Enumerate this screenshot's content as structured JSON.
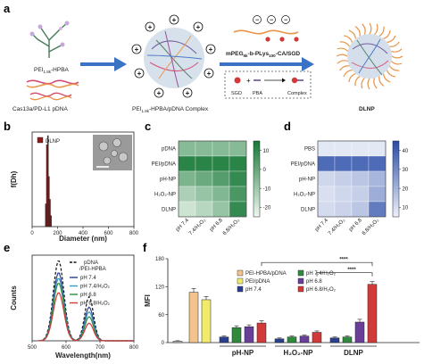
{
  "panel_a": {
    "letter": "a",
    "pei_label": "PEI",
    "pei_sub": "1.8k",
    "pei_suffix": "-HPBA",
    "pdna_label": "Cas13a/PD-L1 pDNA",
    "complex_label_pre": "PEI",
    "complex_sub": "1.8k",
    "complex_label_post": "-HPBA/pDNA Complex",
    "polymer_pre": "mPEG",
    "polymer_sub1": "5k",
    "polymer_mid": "-b-PLys",
    "polymer_sub2": "100",
    "polymer_post": "-CA/SGD",
    "sgd_label": "SGD",
    "pba_label": "PBA",
    "complex_word": "Complex",
    "dlnp_label": "DLNP",
    "charge_plus": "+",
    "charge_minus": "−",
    "reaction_plus": "+"
  },
  "colors": {
    "arrow": "#3a72c4",
    "green_dark": "#1a7a3a",
    "blue_dark": "#2b4ea8",
    "bar_outline": "#222222"
  },
  "panel_b": {
    "letter": "b",
    "legend": "DLNP",
    "scale_bar_note": "",
    "chart_data": {
      "type": "bar",
      "xlabel": "Diameter (nm)",
      "ylabel": "f(Dh)",
      "x_ticks": [
        0,
        200,
        400,
        600,
        800
      ],
      "xlim": [
        0,
        800
      ],
      "x": [
        108,
        116,
        124,
        132,
        140,
        148
      ],
      "values": [
        0.25,
        0.9,
        1.0,
        0.55,
        0.3,
        0.12
      ]
    }
  },
  "panel_c": {
    "letter": "c",
    "chart_data": {
      "type": "heatmap",
      "rows": [
        "pDNA",
        "PEI/pDNA",
        "pH-NP",
        "H₂O₂-NP",
        "DLNP"
      ],
      "cols": [
        "pH 7.4",
        "7.4/H₂O₂",
        "pH 6.8",
        "6.8/H₂O₂"
      ],
      "colorbar_ticks": [
        10,
        0,
        -10,
        -20
      ],
      "colorbar_range": [
        -25,
        15
      ],
      "values": [
        [
          -5,
          -5,
          -5,
          -5
        ],
        [
          12,
          12,
          12,
          12
        ],
        [
          -3,
          0,
          4,
          10
        ],
        [
          -12,
          -8,
          -4,
          6
        ],
        [
          -18,
          -14,
          -8,
          10
        ]
      ]
    }
  },
  "panel_d": {
    "letter": "d",
    "chart_data": {
      "type": "heatmap",
      "rows": [
        "PBS",
        "PEI/pDNA",
        "pH-NP",
        "H₂O₂-NP",
        "DLNP"
      ],
      "cols": [
        "pH 7.4",
        "7.4/H₂O₂",
        "pH 6.8",
        "6.8/H₂O₂"
      ],
      "colorbar_ticks": [
        40,
        30,
        20,
        10
      ],
      "colorbar_range": [
        5,
        45
      ],
      "values": [
        [
          8,
          8,
          8,
          8
        ],
        [
          38,
          38,
          38,
          38
        ],
        [
          12,
          14,
          16,
          20
        ],
        [
          10,
          12,
          14,
          22
        ],
        [
          11,
          13,
          16,
          34
        ]
      ]
    }
  },
  "panel_e": {
    "letter": "e",
    "chart_data": {
      "type": "line",
      "xlabel": "Wavelength(nm)",
      "ylabel": "Counts",
      "x_ticks": [
        500,
        600,
        700,
        800
      ],
      "xlim": [
        500,
        800
      ],
      "series": [
        {
          "name": "pDNA /PEI-HPBA",
          "color": "#111111",
          "dashed": true,
          "peak1": 1.0,
          "peak2": 0.55
        },
        {
          "name": "pH 7.4",
          "color": "#2b3f8f",
          "dashed": false,
          "peak1": 0.85,
          "peak2": 0.42
        },
        {
          "name": "pH 7.4/H₂O₂",
          "color": "#3a9bc0",
          "dashed": false,
          "peak1": 0.78,
          "peak2": 0.36
        },
        {
          "name": "pH 6.8",
          "color": "#2f8a3e",
          "dashed": false,
          "peak1": 0.72,
          "peak2": 0.3
        },
        {
          "name": "pH 6.8/H₂O₂",
          "color": "#d23a3a",
          "dashed": false,
          "peak1": 0.6,
          "peak2": 0.22
        }
      ]
    }
  },
  "panel_f": {
    "letter": "f",
    "chart_data": {
      "type": "bar",
      "ylabel": "MFI",
      "y_ticks": [
        0,
        60,
        120,
        180
      ],
      "ylim": [
        0,
        180
      ],
      "groups": [
        "pH-NP",
        "H₂O₂-NP",
        "DLNP"
      ],
      "significance": [
        "****",
        "****"
      ],
      "legend": [
        {
          "name": "PEI-HPBA/pDNA",
          "color": "#f2c38c"
        },
        {
          "name": "PEI/pDNA",
          "color": "#f1ea6a"
        },
        {
          "name": "pH 7.4",
          "color": "#2b3f8f"
        },
        {
          "name": "pH 7.4/H₂O₂",
          "color": "#2f8a3e"
        },
        {
          "name": "pH 6.8",
          "color": "#6a3f9a"
        },
        {
          "name": "pH 6.8/H₂O₂",
          "color": "#d23a3a"
        }
      ],
      "bars": [
        {
          "value": 3,
          "err": 1,
          "color": "#cccccc"
        },
        {
          "value": 108,
          "err": 8,
          "color": "#f2c38c"
        },
        {
          "value": 92,
          "err": 7,
          "color": "#f1ea6a"
        },
        {
          "value": 12,
          "err": 2,
          "color": "#2b3f8f"
        },
        {
          "value": 32,
          "err": 4,
          "color": "#2f8a3e"
        },
        {
          "value": 34,
          "err": 4,
          "color": "#6a3f9a"
        },
        {
          "value": 42,
          "err": 5,
          "color": "#d23a3a"
        },
        {
          "value": 8,
          "err": 2,
          "color": "#2b3f8f"
        },
        {
          "value": 12,
          "err": 2,
          "color": "#2f8a3e"
        },
        {
          "value": 14,
          "err": 2,
          "color": "#6a3f9a"
        },
        {
          "value": 22,
          "err": 3,
          "color": "#d23a3a"
        },
        {
          "value": 10,
          "err": 2,
          "color": "#2b3f8f"
        },
        {
          "value": 12,
          "err": 2,
          "color": "#2f8a3e"
        },
        {
          "value": 44,
          "err": 6,
          "color": "#6a3f9a"
        },
        {
          "value": 125,
          "err": 6,
          "color": "#d23a3a"
        }
      ]
    }
  }
}
